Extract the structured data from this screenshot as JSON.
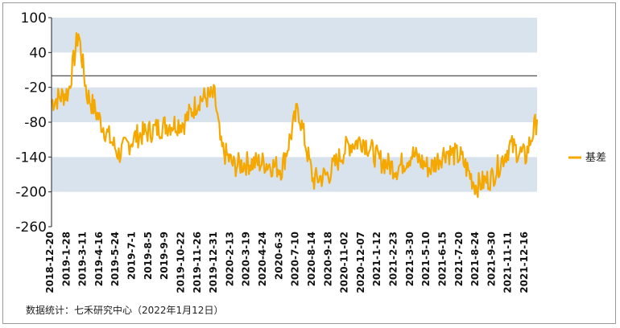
{
  "chart_data": {
    "type": "line",
    "title": "",
    "xlabel": "",
    "ylabel": "",
    "ylim": [
      -260,
      100
    ],
    "y_ticks": [
      100,
      40,
      -20,
      -80,
      -140,
      -200,
      -260
    ],
    "x_tick_labels": [
      "2018-12-20",
      "2019-1-28",
      "2019-3-11",
      "2019-4-16",
      "2019-5-24",
      "2019-7-1",
      "2019-8-5",
      "2019-9-9",
      "2019-10-22",
      "2019-11-26",
      "2019-12-31",
      "2020-2-13",
      "2020-3-19",
      "2020-4-24",
      "2020-6-3",
      "2020-7-10",
      "2020-8-14",
      "2020-9-18",
      "2020-11-02",
      "2020-12-07",
      "2021-1-12",
      "2021-2-23",
      "2021-3-30",
      "2021-5-10",
      "2021-6-15",
      "2021-7-20",
      "2021-8-24",
      "2021-9-30",
      "2021-11-11",
      "2021-12-16"
    ],
    "reference_line": 0,
    "bands": [
      [
        40,
        100
      ],
      [
        -80,
        -20
      ],
      [
        -200,
        -140
      ]
    ],
    "band_color": "#d9e3ee",
    "series": [
      {
        "name": "基差",
        "color": "#f5a800",
        "x": [
          "2018-12-20",
          "2019-1-28",
          "2019-2-20",
          "2019-3-11",
          "2019-4-16",
          "2019-5-24",
          "2019-7-1",
          "2019-8-5",
          "2019-9-9",
          "2019-10-22",
          "2019-11-26",
          "2019-12-31",
          "2020-1-15",
          "2020-2-13",
          "2020-3-19",
          "2020-4-24",
          "2020-6-3",
          "2020-7-10",
          "2020-8-14",
          "2020-9-18",
          "2020-11-02",
          "2020-12-07",
          "2021-1-12",
          "2021-2-23",
          "2021-3-30",
          "2021-5-10",
          "2021-6-15",
          "2021-7-20",
          "2021-8-24",
          "2021-9-30",
          "2021-11-11",
          "2021-12-16",
          "2022-1-12"
        ],
        "values": [
          -45,
          -28,
          75,
          -30,
          -85,
          -135,
          -105,
          -95,
          -85,
          -80,
          -40,
          -35,
          -125,
          -155,
          -150,
          -150,
          -160,
          -55,
          -180,
          -170,
          -120,
          -110,
          -145,
          -160,
          -135,
          -160,
          -130,
          -140,
          -190,
          -175,
          -120,
          -140,
          -75
        ]
      }
    ],
    "legend": {
      "position": "right",
      "entries": [
        "基差"
      ]
    },
    "grid": false
  },
  "footer": {
    "source": "数据统计：七禾研究中心（2022年1月12日）"
  }
}
